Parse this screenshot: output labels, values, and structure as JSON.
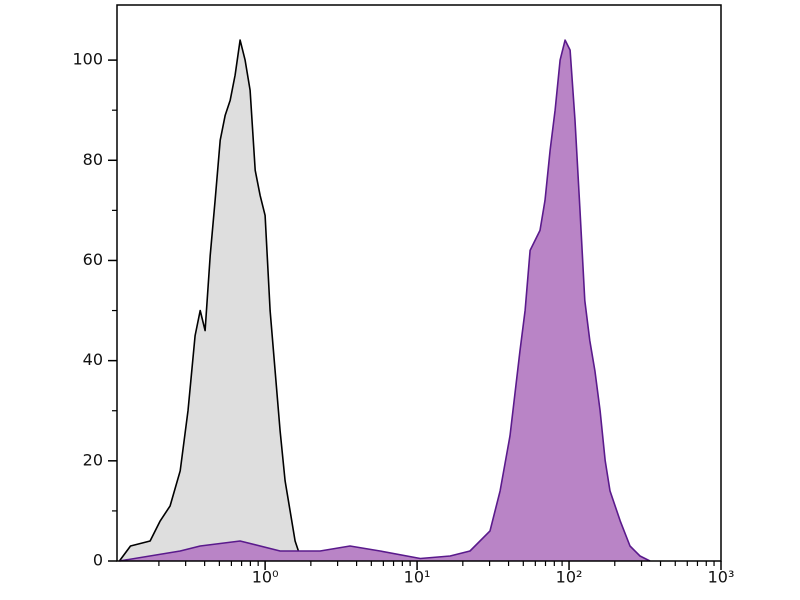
{
  "chart_data": {
    "type": "area",
    "xscale": "log",
    "xlim": [
      0.106,
      1000
    ],
    "ylim": [
      0,
      111
    ],
    "xticks": [
      {
        "value": 1,
        "label": "10⁰"
      },
      {
        "value": 10,
        "label": "10¹"
      },
      {
        "value": 100,
        "label": "10²"
      },
      {
        "value": 1000,
        "label": "10³"
      }
    ],
    "yticks": [
      0,
      20,
      40,
      60,
      80,
      100
    ],
    "series": [
      {
        "color": "#000000",
        "fill": "#dedede",
        "x": [
          0.11,
          0.13,
          0.175,
          0.204,
          0.237,
          0.276,
          0.311,
          0.346,
          0.374,
          0.403,
          0.435,
          0.469,
          0.506,
          0.546,
          0.589,
          0.635,
          0.685,
          0.738,
          0.797,
          0.86,
          0.927,
          1.0,
          1.079,
          1.164,
          1.255,
          1.354,
          1.46,
          1.575,
          1.7,
          1.98
        ],
        "values": [
          0,
          3,
          4,
          8,
          11,
          18,
          30,
          45,
          50,
          46,
          61,
          72,
          84,
          89,
          92,
          97,
          104,
          100,
          94,
          78,
          73,
          69,
          50,
          38,
          26,
          16,
          10,
          4,
          1,
          0
        ]
      },
      {
        "color": "#5a1a8c",
        "fill": "#b984c6",
        "x": [
          0.11,
          0.276,
          0.374,
          0.685,
          1.255,
          2.3,
          3.62,
          5.71,
          10.5,
          16.5,
          22.3,
          30.2,
          35.2,
          40.9,
          47.6,
          51.4,
          55.4,
          64.4,
          69.5,
          75.0,
          80.9,
          87.3,
          94.2,
          101.6,
          109.5,
          118,
          127,
          137,
          148,
          160,
          173,
          186,
          217,
          252,
          293,
          341
        ],
        "values": [
          0,
          2,
          3,
          4,
          2,
          2,
          3,
          2,
          0.5,
          1,
          2,
          6,
          14,
          25,
          42,
          50,
          62,
          66,
          72,
          82,
          90,
          100,
          104,
          102,
          88,
          70,
          52,
          44,
          38,
          30,
          20,
          14,
          8,
          3,
          1,
          0
        ]
      }
    ]
  }
}
